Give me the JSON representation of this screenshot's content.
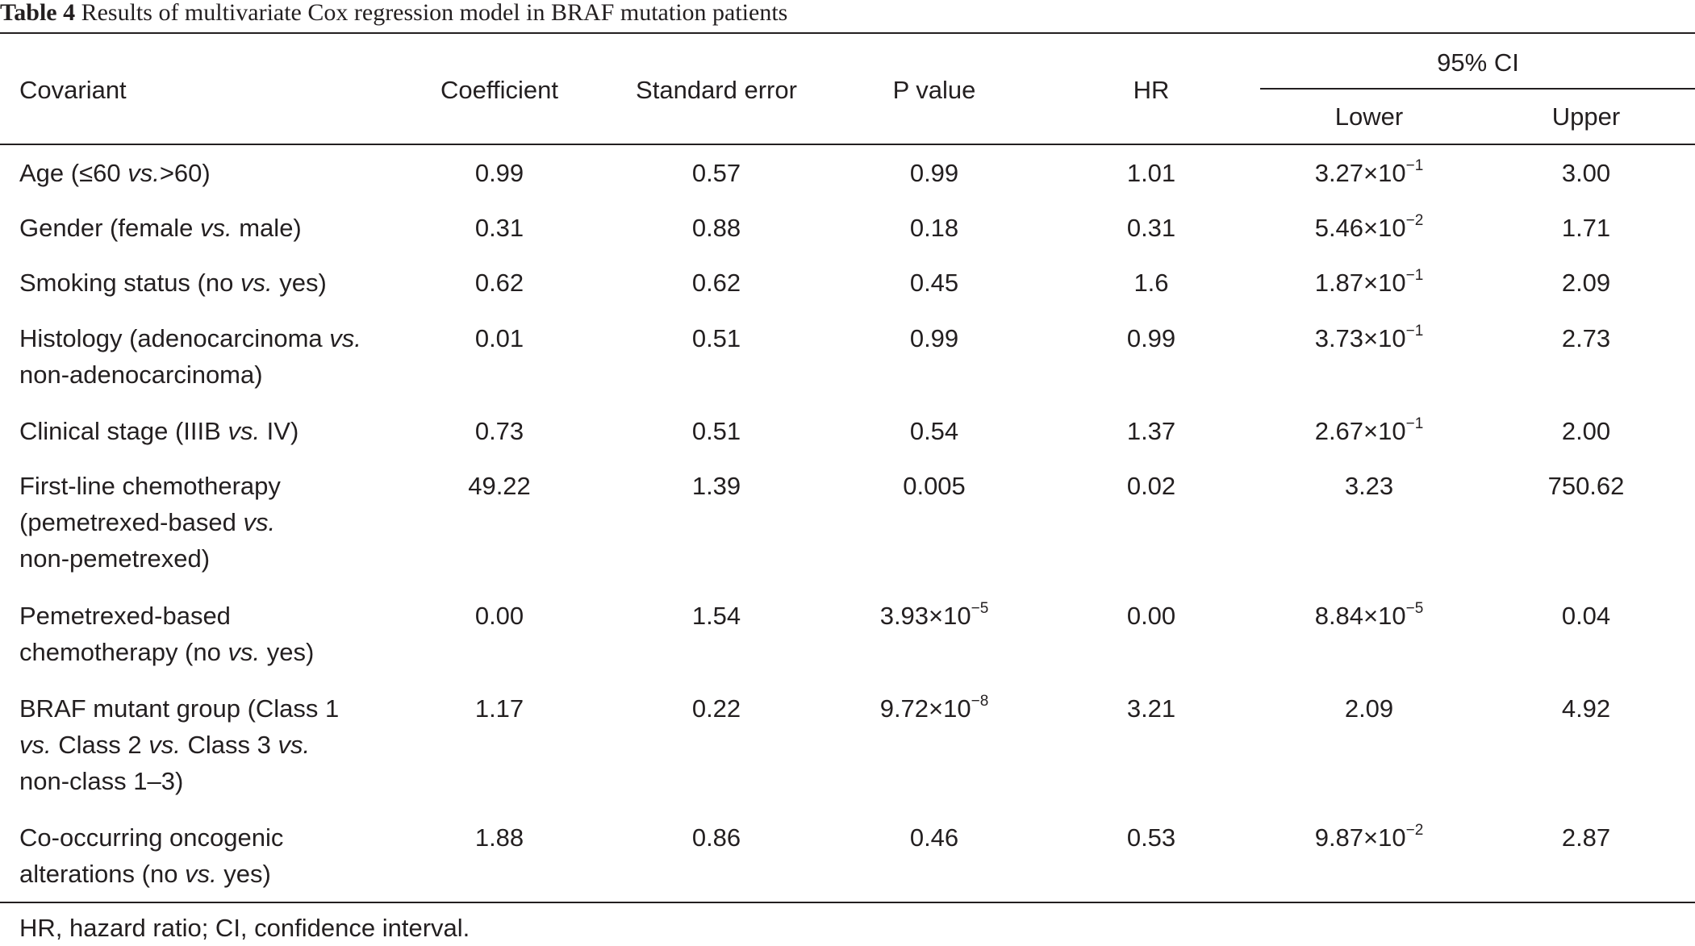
{
  "caption": {
    "label": "Table 4",
    "text": "Results of multivariate Cox regression model in BRAF mutation patients"
  },
  "headers": {
    "covariant": "Covariant",
    "coefficient": "Coefficient",
    "standard_error": "Standard error",
    "p_value": "P value",
    "hr": "HR",
    "ci": "95% CI",
    "lower": "Lower",
    "upper": "Upper"
  },
  "rows": [
    {
      "covariant": [
        "Age (≤60 vs.>60)"
      ],
      "coefficient": "0.99",
      "standard_error": "0.57",
      "p_value": {
        "base": "0.99",
        "exp": ""
      },
      "hr": "1.01",
      "lower": {
        "base": "3.27×10",
        "exp": "−1"
      },
      "upper": "3.00"
    },
    {
      "covariant": [
        "Gender (female vs. male)"
      ],
      "coefficient": "0.31",
      "standard_error": "0.88",
      "p_value": {
        "base": "0.18",
        "exp": ""
      },
      "hr": "0.31",
      "lower": {
        "base": "5.46×10",
        "exp": "−2"
      },
      "upper": "1.71"
    },
    {
      "covariant": [
        "Smoking status (no vs. yes)"
      ],
      "coefficient": "0.62",
      "standard_error": "0.62",
      "p_value": {
        "base": "0.45",
        "exp": ""
      },
      "hr": "1.6",
      "lower": {
        "base": "1.87×10",
        "exp": "−1"
      },
      "upper": "2.09"
    },
    {
      "covariant": [
        "Histology (adenocarcinoma vs.",
        "non-adenocarcinoma)"
      ],
      "coefficient": "0.01",
      "standard_error": "0.51",
      "p_value": {
        "base": "0.99",
        "exp": ""
      },
      "hr": "0.99",
      "lower": {
        "base": "3.73×10",
        "exp": "−1"
      },
      "upper": "2.73"
    },
    {
      "covariant": [
        "Clinical stage (IIIB vs. IV)"
      ],
      "coefficient": "0.73",
      "standard_error": "0.51",
      "p_value": {
        "base": "0.54",
        "exp": ""
      },
      "hr": "1.37",
      "lower": {
        "base": "2.67×10",
        "exp": "−1"
      },
      "upper": "2.00"
    },
    {
      "covariant": [
        "First-line chemotherapy",
        "(pemetrexed-based vs.",
        "non-pemetrexed)"
      ],
      "coefficient": "49.22",
      "standard_error": "1.39",
      "p_value": {
        "base": "0.005",
        "exp": ""
      },
      "hr": "0.02",
      "lower": {
        "base": "3.23",
        "exp": ""
      },
      "upper": "750.62"
    },
    {
      "covariant": [
        "Pemetrexed-based",
        "chemotherapy (no vs. yes)"
      ],
      "coefficient": "0.00",
      "standard_error": "1.54",
      "p_value": {
        "base": "3.93×10",
        "exp": "−5"
      },
      "hr": "0.00",
      "lower": {
        "base": "8.84×10",
        "exp": "−5"
      },
      "upper": "0.04"
    },
    {
      "covariant": [
        "BRAF mutant group (Class 1",
        "vs. Class 2 vs. Class 3 vs.",
        "non-class 1–3)"
      ],
      "coefficient": "1.17",
      "standard_error": "0.22",
      "p_value": {
        "base": "9.72×10",
        "exp": "−8"
      },
      "hr": "3.21",
      "lower": {
        "base": "2.09",
        "exp": ""
      },
      "upper": "4.92"
    },
    {
      "covariant": [
        "Co-occurring oncogenic",
        "alterations (no vs. yes)"
      ],
      "coefficient": "1.88",
      "standard_error": "0.86",
      "p_value": {
        "base": "0.46",
        "exp": ""
      },
      "hr": "0.53",
      "lower": {
        "base": "9.87×10",
        "exp": "−2"
      },
      "upper": "2.87"
    }
  ],
  "footnote": "HR, hazard ratio; CI, confidence interval."
}
